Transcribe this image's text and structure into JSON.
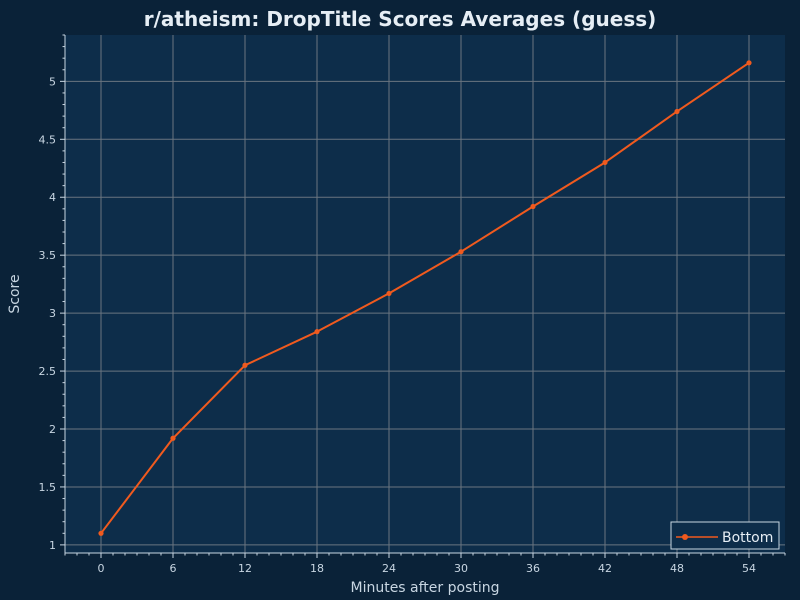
{
  "chart_data": {
    "type": "line",
    "title": "r/atheism: DropTitle Scores Averages (guess)",
    "xlabel": "Minutes after posting",
    "ylabel": "Score",
    "x": [
      0,
      6,
      12,
      18,
      24,
      30,
      36,
      42,
      48,
      54
    ],
    "xticks": [
      "0",
      "6",
      "12",
      "18",
      "24",
      "30",
      "36",
      "42",
      "48",
      "54"
    ],
    "yticks": [
      "1",
      "1.5",
      "2",
      "2.5",
      "3",
      "3.5",
      "4",
      "4.5",
      "5"
    ],
    "xlim": [
      -3,
      57
    ],
    "ylim": [
      0.93,
      5.4
    ],
    "grid": true,
    "legend_position": "bottom-right",
    "series": [
      {
        "name": "Bottom",
        "color": "#f05a1e",
        "values": [
          1.1,
          1.92,
          2.55,
          2.84,
          3.17,
          3.53,
          3.92,
          4.3,
          4.74,
          5.16
        ]
      }
    ]
  },
  "colors": {
    "background": "#0a2238",
    "plot_background": "#0d2d4a",
    "grid": "#6a7580"
  }
}
